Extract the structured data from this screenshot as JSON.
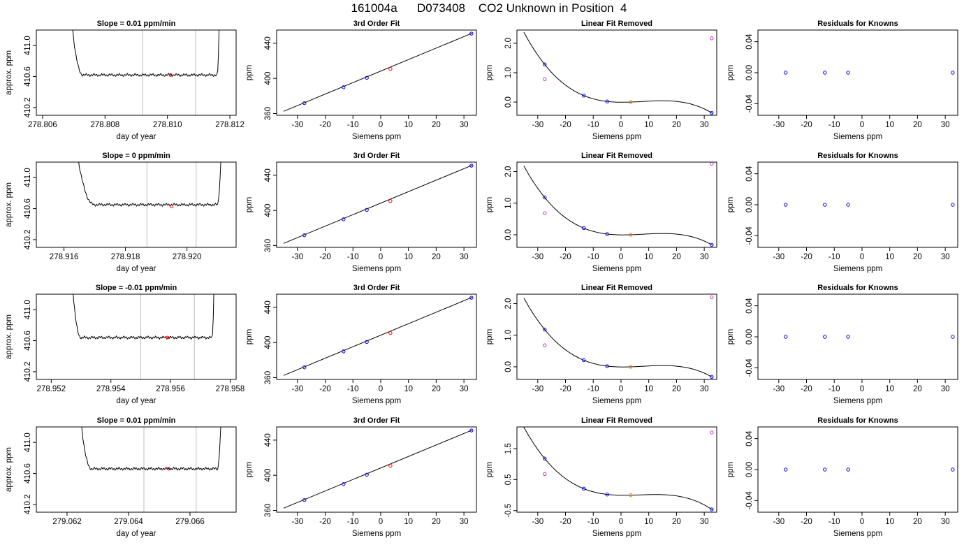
{
  "title": "161004a      D073408    CO2 Unknown in Position  4",
  "colors": {
    "known": "#0000ff",
    "unknown": "#ff0000",
    "unknown_lin": "#ff7f00",
    "outlier": "#cc33cc",
    "gridline": "#bebebe",
    "line": "#000000"
  },
  "chart_data": [
    {
      "row": 0,
      "col": 0,
      "type": "line",
      "title": "Slope =  0.01  ppm/min",
      "xlabel": "day of year",
      "ylabel": "approx. ppm",
      "xlim": [
        278.8058,
        278.8122
      ],
      "ylim": [
        410.1,
        411.2
      ],
      "xticks": [
        "278.806",
        "278.808",
        "278.810",
        "278.812"
      ],
      "xtick_values": [
        278.806,
        278.808,
        278.81,
        278.812
      ],
      "yticks": [
        "410.2",
        "410.6",
        "411.0"
      ],
      "ytick_values": [
        410.2,
        410.6,
        411.0
      ],
      "vlines": [
        278.8092,
        278.8109
      ],
      "marker": {
        "x": 278.8101,
        "y": 410.62
      },
      "trace": {
        "x_start": 278.8068,
        "x_end": 278.8117,
        "plateau": 410.62,
        "t_rise_left": 278.8073,
        "t_rise_right": 278.8116
      }
    },
    {
      "row": 0,
      "col": 1,
      "type": "line",
      "title": "3rd Order Fit",
      "xlabel": "Siemens ppm",
      "ylabel": "ppm",
      "xlim": [
        -37.5,
        34.5
      ],
      "ylim": [
        358,
        455
      ],
      "xticks": [
        "-30",
        "-20",
        "-10",
        "0",
        "10",
        "20",
        "30"
      ],
      "xtick_values": [
        -30,
        -20,
        -10,
        0,
        10,
        20,
        30
      ],
      "yticks": [
        "360",
        "400",
        "440"
      ],
      "ytick_values": [
        360,
        400,
        440
      ],
      "fit_line": {
        "x": [
          -35,
          33
        ],
        "y": [
          362.5,
          451.5
        ]
      },
      "known_points": {
        "x": [
          -27.5,
          -13.4,
          -5.0,
          32.7
        ],
        "y": [
          371.8,
          389.9,
          400.7,
          451.0
        ]
      },
      "unknown_points": {
        "x": [
          3.5
        ],
        "y": [
          410.8
        ]
      }
    },
    {
      "row": 0,
      "col": 2,
      "type": "line",
      "title": "Linear Fit Removed",
      "xlabel": "Siemens ppm",
      "ylabel": "ppm",
      "xlim": [
        -37.5,
        34.5
      ],
      "ylim": [
        -0.45,
        2.45
      ],
      "xticks": [
        "-30",
        "-20",
        "-10",
        "0",
        "10",
        "20",
        "30"
      ],
      "xtick_values": [
        -30,
        -20,
        -10,
        0,
        10,
        20,
        30
      ],
      "yticks": [
        "0.0",
        "1.0",
        "2.0"
      ],
      "ytick_values": [
        0,
        1,
        2
      ],
      "curve": {
        "root": 3.4,
        "coeffs": [
          0.001667,
          -0.00125,
          -0.0183,
          0.03
        ]
      },
      "known_points": {
        "x": [
          -27.5,
          -13.4,
          -5.0,
          32.7
        ],
        "y": [
          1.28,
          0.22,
          0.02,
          -0.37
        ]
      },
      "unknown_points": {
        "x": [
          3.5
        ],
        "y": [
          0.0
        ]
      },
      "outlier_points": {
        "x": [
          -27.5,
          32.7
        ],
        "y": [
          0.78,
          2.17
        ]
      }
    },
    {
      "row": 0,
      "col": 3,
      "type": "scatter",
      "title": "Residuals for Knowns",
      "xlabel": "Siemens ppm",
      "ylabel": "ppm",
      "xlim": [
        -37.5,
        34.5
      ],
      "ylim": [
        -0.055,
        0.055
      ],
      "xticks": [
        "-30",
        "-20",
        "-10",
        "0",
        "10",
        "20",
        "30"
      ],
      "xtick_values": [
        -30,
        -20,
        -10,
        0,
        10,
        20,
        30
      ],
      "yticks": [
        "-0.04",
        "0.00",
        "0.04"
      ],
      "ytick_values": [
        -0.04,
        0.0,
        0.04
      ],
      "known_points": {
        "x": [
          -27.5,
          -13.4,
          -5.0,
          32.7
        ],
        "y": [
          0,
          0,
          0,
          0
        ]
      }
    },
    {
      "row": 1,
      "col": 0,
      "type": "line",
      "title": "Slope =  0  ppm/min",
      "xlabel": "day of year",
      "ylabel": "approx. ppm",
      "xlim": [
        278.9151,
        278.9216
      ],
      "ylim": [
        410.1,
        411.2
      ],
      "xticks": [
        "278.916",
        "278.918",
        "278.920"
      ],
      "xtick_values": [
        278.916,
        278.918,
        278.92
      ],
      "yticks": [
        "410.2",
        "410.6",
        "411.0"
      ],
      "ytick_values": [
        410.2,
        410.6,
        411.0
      ],
      "vlines": [
        278.9187,
        278.9203
      ],
      "marker": {
        "x": 278.9195,
        "y": 410.63
      },
      "trace": {
        "x_start": 278.9162,
        "x_end": 278.9212,
        "plateau": 410.65,
        "t_rise_left": 278.917,
        "t_rise_right": 278.921
      }
    },
    {
      "row": 1,
      "col": 1,
      "type": "line",
      "title": "3rd Order Fit",
      "xlabel": "Siemens ppm",
      "ylabel": "ppm",
      "xlim": [
        -37.5,
        34.5
      ],
      "ylim": [
        358,
        455
      ],
      "xticks": [
        "-30",
        "-20",
        "-10",
        "0",
        "10",
        "20",
        "30"
      ],
      "xtick_values": [
        -30,
        -20,
        -10,
        0,
        10,
        20,
        30
      ],
      "yticks": [
        "360",
        "400",
        "440"
      ],
      "ytick_values": [
        360,
        400,
        440
      ],
      "fit_line": {
        "x": [
          -35,
          33
        ],
        "y": [
          362.5,
          451.5
        ]
      },
      "known_points": {
        "x": [
          -27.5,
          -13.4,
          -5.0,
          32.7
        ],
        "y": [
          371.8,
          389.9,
          400.7,
          451.0
        ]
      },
      "unknown_points": {
        "x": [
          3.5
        ],
        "y": [
          410.8
        ]
      }
    },
    {
      "row": 1,
      "col": 2,
      "type": "line",
      "title": "Linear Fit Removed",
      "xlabel": "Siemens ppm",
      "ylabel": "ppm",
      "xlim": [
        -37.5,
        34.5
      ],
      "ylim": [
        -0.4,
        2.3
      ],
      "xticks": [
        "-30",
        "-20",
        "-10",
        "0",
        "10",
        "20",
        "30"
      ],
      "xtick_values": [
        -30,
        -20,
        -10,
        0,
        10,
        20,
        30
      ],
      "yticks": [
        "0.0",
        "1.0",
        "2.0"
      ],
      "ytick_values": [
        0,
        1,
        2
      ],
      "curve": {
        "root": 3.4,
        "coeffs": [
          0.00155,
          -0.00115,
          -0.0172,
          0.028
        ]
      },
      "known_points": {
        "x": [
          -27.5,
          -13.4,
          -5.0,
          32.7
        ],
        "y": [
          1.18,
          0.21,
          0.02,
          -0.32
        ]
      },
      "unknown_points": {
        "x": [
          3.5
        ],
        "y": [
          0.0
        ]
      },
      "outlier_points": {
        "x": [
          -27.5,
          32.7
        ],
        "y": [
          0.68,
          2.25
        ]
      }
    },
    {
      "row": 1,
      "col": 3,
      "type": "scatter",
      "title": "Residuals for Knowns",
      "xlabel": "Siemens ppm",
      "ylabel": "ppm",
      "xlim": [
        -37.5,
        34.5
      ],
      "ylim": [
        -0.055,
        0.055
      ],
      "xticks": [
        "-30",
        "-20",
        "-10",
        "0",
        "10",
        "20",
        "30"
      ],
      "xtick_values": [
        -30,
        -20,
        -10,
        0,
        10,
        20,
        30
      ],
      "yticks": [
        "-0.04",
        "0.00",
        "0.04"
      ],
      "ytick_values": [
        -0.04,
        0.0,
        0.04
      ],
      "known_points": {
        "x": [
          -27.5,
          -13.4,
          -5.0,
          32.7
        ],
        "y": [
          0,
          0,
          0,
          0
        ]
      }
    },
    {
      "row": 2,
      "col": 0,
      "type": "line",
      "title": "Slope =  -0.01  ppm/min",
      "xlabel": "day of year",
      "ylabel": "approx. ppm",
      "xlim": [
        278.9515,
        278.9582
      ],
      "ylim": [
        410.1,
        411.2
      ],
      "xticks": [
        "278.952",
        "278.954",
        "278.956",
        "278.958"
      ],
      "xtick_values": [
        278.952,
        278.954,
        278.956,
        278.958
      ],
      "yticks": [
        "410.2",
        "410.6",
        "411.0"
      ],
      "ytick_values": [
        410.2,
        410.6,
        411.0
      ],
      "vlines": [
        278.955,
        278.9568
      ],
      "marker": {
        "x": 278.9559,
        "y": 410.64
      },
      "trace": {
        "x_start": 278.9526,
        "x_end": 278.9575,
        "plateau": 410.64,
        "t_rise_left": 278.953,
        "t_rise_right": 278.9574
      }
    },
    {
      "row": 2,
      "col": 1,
      "type": "line",
      "title": "3rd Order Fit",
      "xlabel": "Siemens ppm",
      "ylabel": "ppm",
      "xlim": [
        -37.5,
        34.5
      ],
      "ylim": [
        358,
        455
      ],
      "xticks": [
        "-30",
        "-20",
        "-10",
        "0",
        "10",
        "20",
        "30"
      ],
      "xtick_values": [
        -30,
        -20,
        -10,
        0,
        10,
        20,
        30
      ],
      "yticks": [
        "360",
        "400",
        "440"
      ],
      "ytick_values": [
        360,
        400,
        440
      ],
      "fit_line": {
        "x": [
          -35,
          33
        ],
        "y": [
          362.5,
          451.5
        ]
      },
      "known_points": {
        "x": [
          -27.5,
          -13.4,
          -5.0,
          32.7
        ],
        "y": [
          371.8,
          389.9,
          400.7,
          451.0
        ]
      },
      "unknown_points": {
        "x": [
          3.5
        ],
        "y": [
          410.8
        ]
      }
    },
    {
      "row": 2,
      "col": 2,
      "type": "line",
      "title": "Linear Fit Removed",
      "xlabel": "Siemens ppm",
      "ylabel": "ppm",
      "xlim": [
        -37.5,
        34.5
      ],
      "ylim": [
        -0.4,
        2.3
      ],
      "xticks": [
        "-30",
        "-20",
        "-10",
        "0",
        "10",
        "20",
        "30"
      ],
      "xtick_values": [
        -30,
        -20,
        -10,
        0,
        10,
        20,
        30
      ],
      "yticks": [
        "0.0",
        "1.0",
        "2.0"
      ],
      "ytick_values": [
        0,
        1,
        2
      ],
      "curve": {
        "root": 3.4,
        "coeffs": [
          0.00155,
          -0.00115,
          -0.0172,
          0.028
        ]
      },
      "known_points": {
        "x": [
          -27.5,
          -13.4,
          -5.0,
          32.7
        ],
        "y": [
          1.18,
          0.21,
          0.02,
          -0.32
        ]
      },
      "unknown_points": {
        "x": [
          3.5
        ],
        "y": [
          0.0
        ]
      },
      "outlier_points": {
        "x": [
          -27.5,
          32.7
        ],
        "y": [
          0.68,
          2.2
        ]
      }
    },
    {
      "row": 2,
      "col": 3,
      "type": "scatter",
      "title": "Residuals for Knowns",
      "xlabel": "Siemens ppm",
      "ylabel": "ppm",
      "xlim": [
        -37.5,
        34.5
      ],
      "ylim": [
        -0.055,
        0.055
      ],
      "xticks": [
        "-30",
        "-20",
        "-10",
        "0",
        "10",
        "20",
        "30"
      ],
      "xtick_values": [
        -30,
        -20,
        -10,
        0,
        10,
        20,
        30
      ],
      "yticks": [
        "-0.04",
        "0.00",
        "0.04"
      ],
      "ytick_values": [
        -0.04,
        0.0,
        0.04
      ],
      "known_points": {
        "x": [
          -27.5,
          -13.4,
          -5.0,
          32.7
        ],
        "y": [
          0,
          0,
          0,
          0
        ]
      }
    },
    {
      "row": 3,
      "col": 0,
      "type": "line",
      "title": "Slope =  0.01  ppm/min",
      "xlabel": "day of year",
      "ylabel": "approx. ppm",
      "xlim": [
        279.061,
        279.0675
      ],
      "ylim": [
        410.1,
        411.2
      ],
      "xticks": [
        "279.062",
        "279.064",
        "279.066"
      ],
      "xtick_values": [
        279.062,
        279.064,
        279.066
      ],
      "yticks": [
        "410.2",
        "410.6",
        "411.0"
      ],
      "ytick_values": [
        410.2,
        410.6,
        411.0
      ],
      "vlines": [
        279.0645,
        279.0662
      ],
      "marker": {
        "x": 279.0653,
        "y": 410.66
      },
      "trace": {
        "x_start": 279.0623,
        "x_end": 279.0671,
        "plateau": 410.66,
        "t_rise_left": 279.0628,
        "t_rise_right": 279.0669
      }
    },
    {
      "row": 3,
      "col": 1,
      "type": "line",
      "title": "3rd Order Fit",
      "xlabel": "Siemens ppm",
      "ylabel": "ppm",
      "xlim": [
        -37.5,
        34.5
      ],
      "ylim": [
        358,
        455
      ],
      "xticks": [
        "-30",
        "-20",
        "-10",
        "0",
        "10",
        "20",
        "30"
      ],
      "xtick_values": [
        -30,
        -20,
        -10,
        0,
        10,
        20,
        30
      ],
      "yticks": [
        "360",
        "400",
        "440"
      ],
      "ytick_values": [
        360,
        400,
        440
      ],
      "fit_line": {
        "x": [
          -35,
          33
        ],
        "y": [
          362.5,
          451.5
        ]
      },
      "known_points": {
        "x": [
          -27.5,
          -13.4,
          -5.0,
          32.7
        ],
        "y": [
          371.8,
          389.9,
          400.7,
          451.0
        ]
      },
      "unknown_points": {
        "x": [
          3.5
        ],
        "y": [
          410.8
        ]
      }
    },
    {
      "row": 3,
      "col": 2,
      "type": "line",
      "title": "Linear Fit Removed",
      "xlabel": "Siemens ppm",
      "ylabel": "ppm",
      "xlim": [
        -37.5,
        34.5
      ],
      "ylim": [
        -0.55,
        2.2
      ],
      "xticks": [
        "-30",
        "-20",
        "-10",
        "0",
        "10",
        "20",
        "30"
      ],
      "xtick_values": [
        -30,
        -20,
        -10,
        0,
        10,
        20,
        30
      ],
      "yticks": [
        "-0.5",
        "0.5",
        "1.5"
      ],
      "ytick_values": [
        -0.5,
        0.5,
        1.5
      ],
      "curve": {
        "root": 3.4,
        "coeffs": [
          0.00155,
          -0.00115,
          -0.0172,
          0.028
        ]
      },
      "known_points": {
        "x": [
          -27.5,
          -13.4,
          -5.0,
          32.7
        ],
        "y": [
          1.18,
          0.21,
          0.02,
          -0.46
        ]
      },
      "unknown_points": {
        "x": [
          3.5
        ],
        "y": [
          0.0
        ]
      },
      "outlier_points": {
        "x": [
          -27.5,
          32.7
        ],
        "y": [
          0.68,
          2.02
        ]
      }
    },
    {
      "row": 3,
      "col": 3,
      "type": "scatter",
      "title": "Residuals for Knowns",
      "xlabel": "Siemens ppm",
      "ylabel": "ppm",
      "xlim": [
        -37.5,
        34.5
      ],
      "ylim": [
        -0.055,
        0.055
      ],
      "xticks": [
        "-30",
        "-20",
        "-10",
        "0",
        "10",
        "20",
        "30"
      ],
      "xtick_values": [
        -30,
        -20,
        -10,
        0,
        10,
        20,
        30
      ],
      "yticks": [
        "-0.04",
        "0.00",
        "0.04"
      ],
      "ytick_values": [
        -0.04,
        0.0,
        0.04
      ],
      "known_points": {
        "x": [
          -27.5,
          -13.4,
          -5.0,
          32.7
        ],
        "y": [
          0,
          0,
          0,
          0
        ]
      }
    }
  ]
}
